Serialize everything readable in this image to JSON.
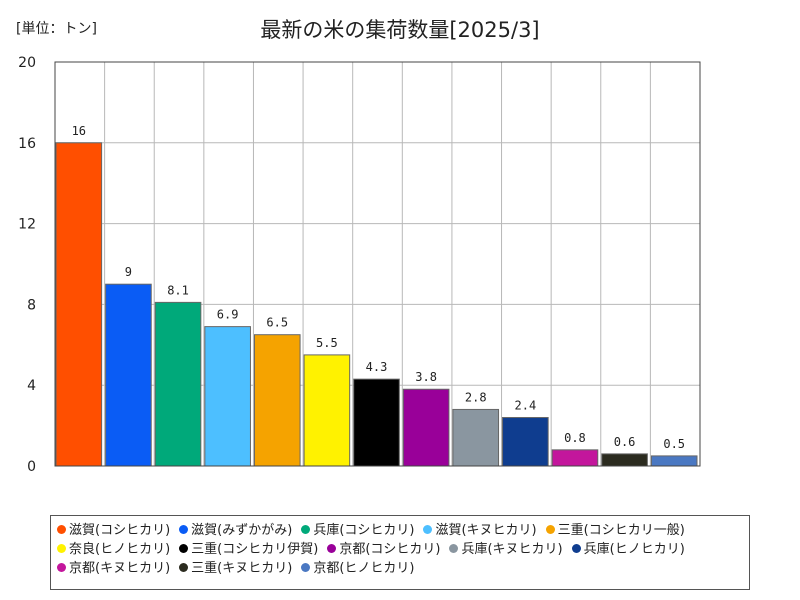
{
  "header": {
    "unit_label": "[単位：トン]",
    "title": "最新の米の集荷数量[2025/3]"
  },
  "chart_data": {
    "type": "bar",
    "categories": [
      "滋賀(コシヒカリ)",
      "滋賀(みずかがみ)",
      "兵庫(コシヒカリ)",
      "滋賀(キヌヒカリ)",
      "三重(コシヒカリ一般)",
      "奈良(ヒノヒカリ)",
      "三重(コシヒカリ伊賀)",
      "京都(コシヒカリ)",
      "兵庫(キヌヒカリ)",
      "兵庫(ヒノヒカリ)",
      "京都(キヌヒカリ)",
      "三重(キヌヒカリ)",
      "京都(ヒノヒカリ)"
    ],
    "values": [
      16,
      9,
      8.1,
      6.9,
      6.5,
      5.5,
      4.3,
      3.8,
      2.8,
      2.4,
      0.8,
      0.6,
      0.5
    ],
    "value_labels": [
      "16",
      "9",
      "8.1",
      "6.9",
      "6.5",
      "5.5",
      "4.3",
      "3.8",
      "2.8",
      "2.4",
      "0.8",
      "0.6",
      "0.5"
    ],
    "colors": [
      "#ff4f00",
      "#0a5cf5",
      "#00a97a",
      "#4dbfff",
      "#f5a300",
      "#fff200",
      "#000000",
      "#990099",
      "#8a96a0",
      "#0f3d8f",
      "#c3169c",
      "#2b2b1f",
      "#4a78c2"
    ],
    "ylim": [
      0,
      20
    ],
    "yticks": [
      0,
      4,
      8,
      12,
      16,
      20
    ],
    "ytick_labels": [
      "0",
      "4",
      "8",
      "12",
      "16",
      "20"
    ],
    "grid": true,
    "legend_position": "bottom"
  }
}
